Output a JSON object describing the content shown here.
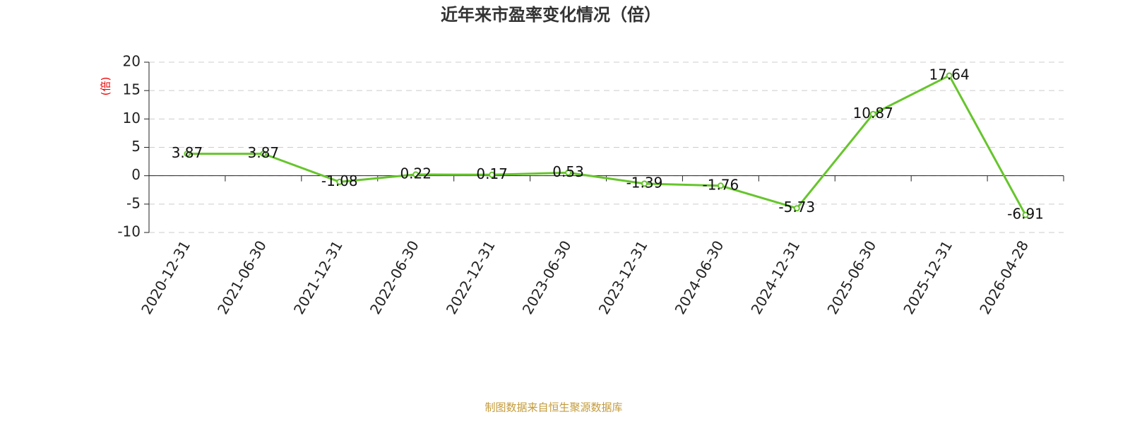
{
  "chart_data": {
    "type": "line",
    "title": "近年来市盈率变化情况（倍）",
    "y_label": "(倍)",
    "source": "制图数据来自恒生聚源数据库",
    "categories": [
      "2020-12-31",
      "2021-06-30",
      "2021-12-31",
      "2022-06-30",
      "2022-12-31",
      "2023-06-30",
      "2023-12-31",
      "2024-06-30",
      "2024-12-31",
      "2025-06-30",
      "2025-12-31",
      "2026-04-28"
    ],
    "values": [
      3.87,
      3.87,
      -1.08,
      0.22,
      0.17,
      0.53,
      -1.39,
      -1.76,
      -5.73,
      10.87,
      17.64,
      -6.91
    ],
    "color": "#66c52c",
    "ylim": [
      -10,
      20
    ],
    "yticks": [
      -10,
      -5,
      0,
      5,
      10,
      15,
      20
    ],
    "grid": true
  }
}
